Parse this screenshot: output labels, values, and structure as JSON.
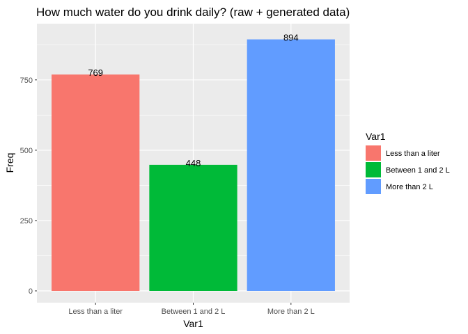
{
  "chart_data": {
    "type": "bar",
    "title": "How much water do you drink daily? (raw + generated data)",
    "xlabel": "Var1",
    "ylabel": "Freq",
    "categories": [
      "Less than a liter",
      "Between 1 and 2 L",
      "More than 2 L"
    ],
    "values": [
      769,
      448,
      894
    ],
    "colors": [
      "#F8766D",
      "#00BA38",
      "#619CFF"
    ],
    "ylim": [
      0,
      935
    ],
    "yticks": [
      0,
      250,
      500,
      750
    ],
    "grid": true,
    "legend": {
      "title": "Var1",
      "placement": "right",
      "entries": [
        "Less than a liter",
        "Between 1 and 2 L",
        "More than 2 L"
      ]
    },
    "panel_background": "#EBEBEB",
    "grid_color": "#FFFFFF"
  }
}
